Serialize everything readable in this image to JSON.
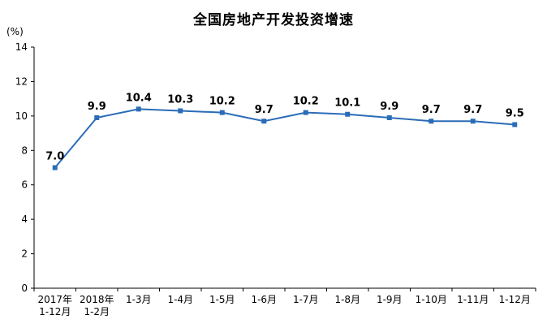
{
  "title": "全国房地产开发投资增速",
  "y_axis_unit": "(%)",
  "colors": {
    "line": "#2a6cb8",
    "axis": "#000000",
    "text": "#000000",
    "background": "#ffffff"
  },
  "chart_data": {
    "type": "line",
    "title": "全国房地产开发投资增速",
    "ylabel": "(%)",
    "xlabel": "",
    "categories": [
      [
        "2017年",
        "1-12月"
      ],
      [
        "2018年",
        "1-2月"
      ],
      [
        "1-3月"
      ],
      [
        "1-4月"
      ],
      [
        "1-5月"
      ],
      [
        "1-6月"
      ],
      [
        "1-7月"
      ],
      [
        "1-8月"
      ],
      [
        "1-9月"
      ],
      [
        "1-10月"
      ],
      [
        "1-11月"
      ],
      [
        "1-12月"
      ]
    ],
    "values": [
      7.0,
      9.9,
      10.4,
      10.3,
      10.2,
      9.7,
      10.2,
      10.1,
      9.9,
      9.7,
      9.7,
      9.5
    ],
    "value_labels": [
      "7.0",
      "9.9",
      "10.4",
      "10.3",
      "10.2",
      "9.7",
      "10.2",
      "10.1",
      "9.9",
      "9.7",
      "9.7",
      "9.5"
    ],
    "ylim": [
      0,
      14
    ],
    "ytick_step": 2,
    "ytick_labels": [
      "0",
      "2",
      "4",
      "6",
      "8",
      "10",
      "12",
      "14"
    ],
    "grid": false,
    "legend": "none",
    "marker": "square",
    "line_color": "#2a6cb8"
  }
}
